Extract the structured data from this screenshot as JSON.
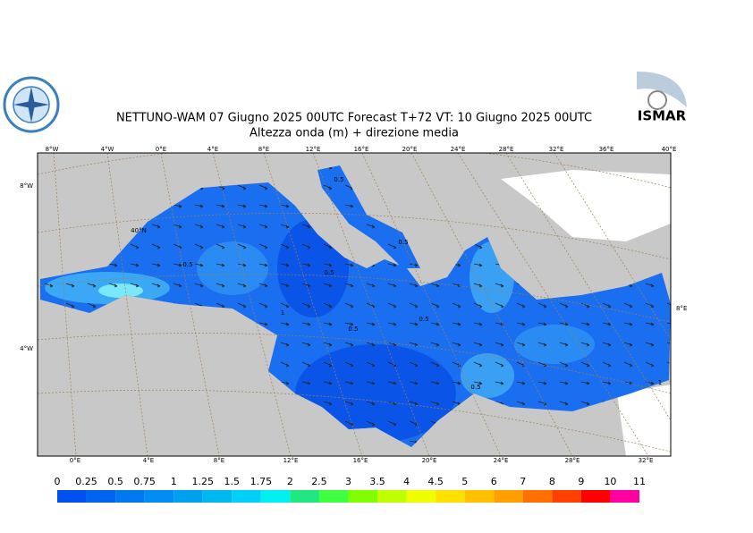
{
  "header": {
    "title": "NETTUNO-WAM  07   Giugno  2025 00UTC Forecast T+72 VT: 10   Giugno  2025 00UTC",
    "subtitle": "Altezza onda (m) + direzione media",
    "logo_right": "ISMAR"
  },
  "map": {
    "top_lon_labels": [
      "8°W",
      "4°W",
      "0°E",
      "4°E",
      "8°E",
      "12°E",
      "16°E",
      "20°E",
      "24°E",
      "28°E",
      "32°E",
      "36°E",
      "40°E"
    ],
    "bottom_lon_labels": [
      "0°E",
      "4°E",
      "8°E",
      "12°E",
      "16°E",
      "20°E",
      "24°E",
      "28°E",
      "32°E"
    ],
    "left_lat_labels": [
      "8°W",
      "40°N",
      "4°W"
    ],
    "right_lat_labels": [
      "8°E"
    ],
    "contour_labels": [
      "0.5",
      "0.5",
      "0.5",
      "0.5",
      "0.5",
      "0.5",
      "1",
      "0.5",
      "1"
    ]
  },
  "legend": {
    "levels": [
      0,
      0.25,
      0.5,
      0.75,
      1,
      1.25,
      1.5,
      1.75,
      2,
      2.5,
      3,
      3.5,
      4,
      4.5,
      5,
      6,
      7,
      8,
      9,
      10,
      11
    ],
    "colors": [
      "#0050f0",
      "#0064f0",
      "#0078f0",
      "#008cf0",
      "#00a0f0",
      "#00b8f0",
      "#00d0f8",
      "#00f0f0",
      "#20e880",
      "#40ff40",
      "#80ff00",
      "#c0ff00",
      "#f0ff00",
      "#ffe000",
      "#ffc000",
      "#ffa000",
      "#ff7000",
      "#ff4000",
      "#ff0000",
      "#ff00a0"
    ]
  }
}
